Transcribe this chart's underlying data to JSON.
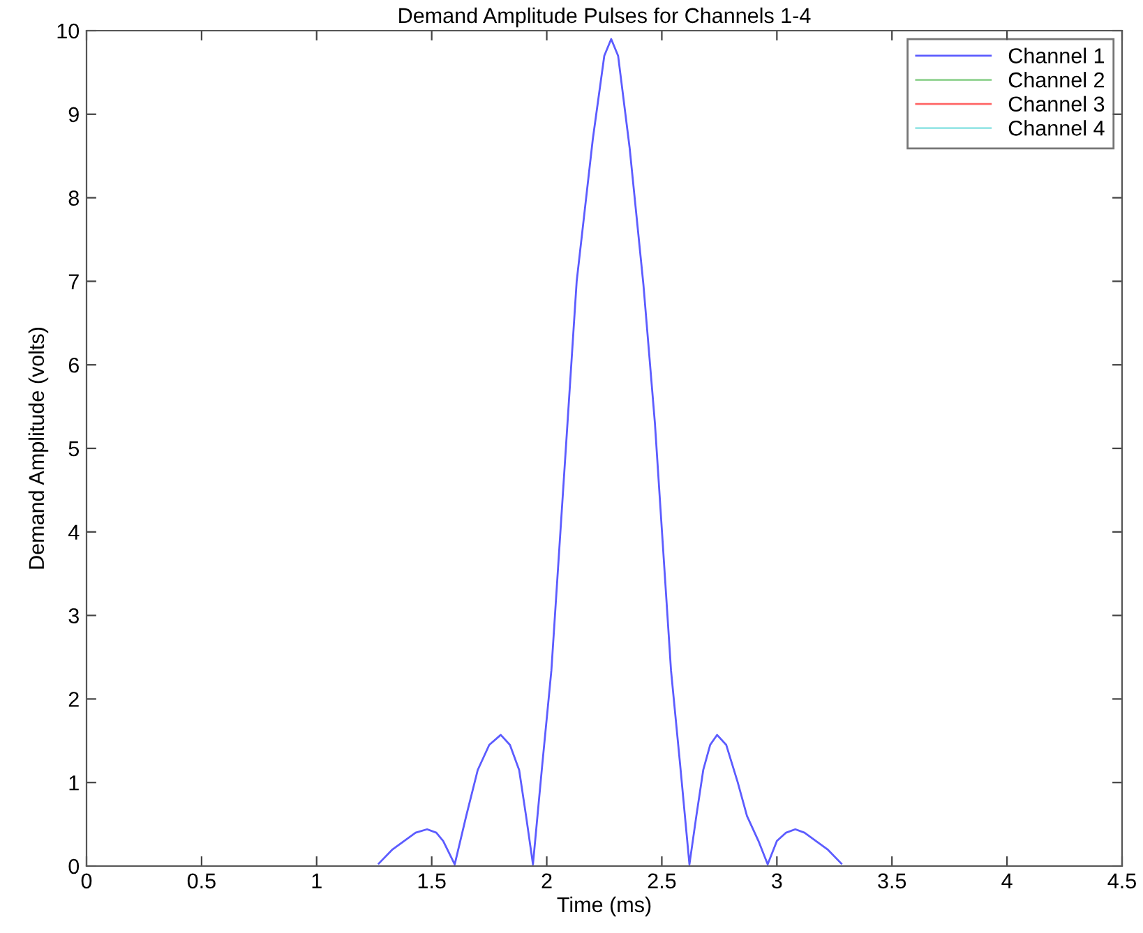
{
  "chart_data": {
    "type": "line",
    "title": "Demand Amplitude Pulses for Channels 1-4",
    "xlabel": "Time (ms)",
    "ylabel": "Demand Amplitude (volts)",
    "series": [
      {
        "name": "Channel 1",
        "color": "#5c5cff",
        "x": [
          1.27,
          1.33,
          1.38,
          1.43,
          1.48,
          1.52,
          1.55,
          1.6,
          1.65,
          1.7,
          1.75,
          1.8,
          1.84,
          1.88,
          1.91,
          1.94,
          1.98,
          2.02,
          2.09,
          2.13,
          2.2,
          2.25,
          2.28,
          2.31,
          2.36,
          2.42,
          2.47,
          2.54,
          2.58,
          2.62,
          2.65,
          2.68,
          2.71,
          2.74,
          2.78,
          2.83,
          2.87,
          2.92,
          2.96,
          3.0,
          3.04,
          3.08,
          3.12,
          3.17,
          3.22,
          3.28
        ],
        "values": [
          0.03,
          0.2,
          0.3,
          0.4,
          0.44,
          0.4,
          0.3,
          0.02,
          0.6,
          1.15,
          1.45,
          1.57,
          1.45,
          1.15,
          0.6,
          0.02,
          1.2,
          2.34,
          5.3,
          7.0,
          8.7,
          9.7,
          9.9,
          9.7,
          8.6,
          6.96,
          5.3,
          2.34,
          1.2,
          0.02,
          0.6,
          1.15,
          1.45,
          1.57,
          1.45,
          1.0,
          0.6,
          0.3,
          0.02,
          0.3,
          0.4,
          0.44,
          0.4,
          0.3,
          0.2,
          0.03
        ]
      },
      {
        "name": "Channel 2",
        "color": "#99d699"
      },
      {
        "name": "Channel 3",
        "color": "#ff6666"
      },
      {
        "name": "Channel 4",
        "color": "#99e6e6"
      }
    ],
    "xlim": [
      0,
      4.5
    ],
    "xticks": [
      0,
      0.5,
      1,
      1.5,
      2,
      2.5,
      3,
      3.5,
      4,
      4.5
    ],
    "ylim": [
      0,
      10
    ],
    "yticks": [
      0,
      1,
      2,
      3,
      4,
      5,
      6,
      7,
      8,
      9,
      10
    ],
    "grid": false,
    "legend": "top right"
  }
}
